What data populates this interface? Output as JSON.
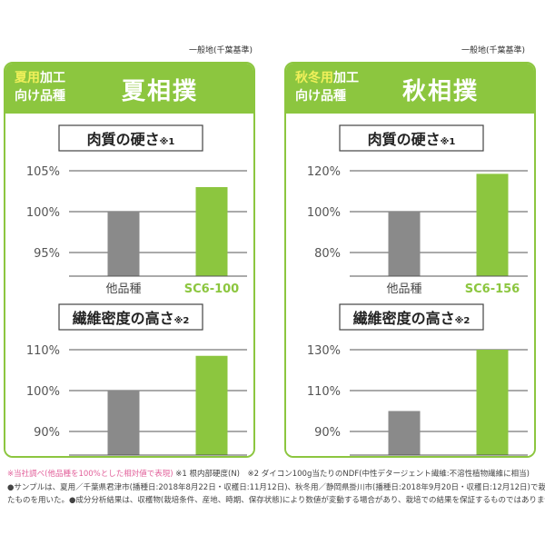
{
  "panels": [
    {
      "standard_note": "一般地(千葉基準)",
      "ribbon_season": "夏用",
      "ribbon_rest1": "加工",
      "ribbon_line2": "向け品種",
      "title": "夏相撲",
      "charts": [
        {
          "heading": "肉質の硬さ",
          "note": "※1"
        },
        {
          "heading": "繊維密度の高さ",
          "note": "※2"
        }
      ]
    },
    {
      "standard_note": "一般地(千葉基準)",
      "ribbon_season": "秋冬用",
      "ribbon_rest1": "加工",
      "ribbon_line2": "向け品種",
      "title": "秋相撲",
      "charts": [
        {
          "heading": "肉質の硬さ",
          "note": "※1"
        },
        {
          "heading": "繊維密度の高さ",
          "note": "※2"
        }
      ]
    }
  ],
  "chart_data": [
    {
      "type": "bar",
      "title": "肉質の硬さ※1",
      "categories": [
        "他品種",
        "SC6-100"
      ],
      "values": [
        100,
        103
      ],
      "yticks": [
        "105%",
        "100%",
        "95%"
      ],
      "ylim": [
        95,
        105
      ],
      "colors": [
        "#8a8a8a",
        "#8cc63f"
      ],
      "grid": true
    },
    {
      "type": "bar",
      "title": "繊維密度の高さ※2",
      "categories": [
        "他品種",
        "SC6-100"
      ],
      "values": [
        100,
        108.5
      ],
      "yticks": [
        "110%",
        "100%",
        "90%"
      ],
      "ylim": [
        90,
        110
      ],
      "colors": [
        "#8a8a8a",
        "#8cc63f"
      ],
      "grid": true
    },
    {
      "type": "bar",
      "title": "肉質の硬さ※1",
      "categories": [
        "他品種",
        "SC6-156"
      ],
      "values": [
        100,
        118.5
      ],
      "yticks": [
        "120%",
        "100%",
        "80%"
      ],
      "ylim": [
        80,
        120
      ],
      "colors": [
        "#8a8a8a",
        "#8cc63f"
      ],
      "grid": true
    },
    {
      "type": "bar",
      "title": "繊維密度の高さ※2",
      "categories": [
        "他品種",
        "SC6-156"
      ],
      "values": [
        100,
        130
      ],
      "yticks": [
        "130%",
        "110%",
        "90%"
      ],
      "ylim": [
        90,
        130
      ],
      "colors": [
        "#8a8a8a",
        "#8cc63f"
      ],
      "grid": true
    }
  ],
  "footnotes": {
    "line1_pink": "※当社調べ(他品種を100%とした相対値で表現)",
    "line1_rest": "※1 根内部硬度(N)　※2 ダイコン100g当たりのNDF(中性デタージェント繊維:不溶性植物繊維に相当)",
    "line2": "●サンプルは、夏用／千葉県君津市(播種日:2018年8月22日・収穫日:11月12日)、秋冬用／静岡県掛川市(播種日:2018年9月20日・収穫日:12月12日)で栽培され",
    "line3": "たものを用いた。●成分分析結果は、収穫物(栽培条件、産地、時期、保存状態)により数値が変動する場合があり、栽培での結果を保証するものではありません。"
  },
  "colors": {
    "accent": "#8cc63f",
    "other": "#8a8a8a",
    "pink": "#e2609a"
  }
}
